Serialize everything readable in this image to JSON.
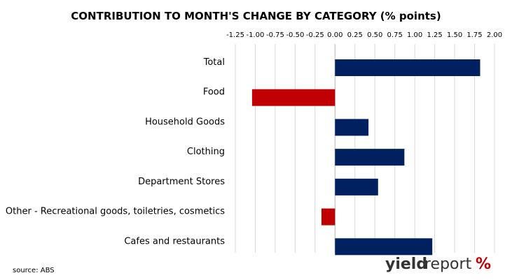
{
  "chart_data": {
    "type": "bar",
    "orientation": "horizontal",
    "title": "CONTRIBUTION TO MONTH'S CHANGE BY CATEGORY (% points)",
    "categories": [
      "Total",
      "Food",
      "Household Goods",
      "Clothing",
      "Department Stores",
      "Other - Recreational goods, toiletries, cosmetics",
      "Cafes and restaurants"
    ],
    "values": [
      1.82,
      -1.04,
      0.42,
      0.87,
      0.54,
      -0.17,
      1.22
    ],
    "xlim": [
      -1.25,
      2.0
    ],
    "xticks": [
      "-1.25",
      "-1.00",
      "-0.75",
      "-0.50",
      "-0.25",
      "0.00",
      "0.25",
      "0.50",
      "0.75",
      "1.00",
      "1.25",
      "1.50",
      "1.75",
      "2.00"
    ],
    "xtick_values": [
      -1.25,
      -1.0,
      -0.75,
      -0.5,
      -0.25,
      0.0,
      0.25,
      0.5,
      0.75,
      1.0,
      1.25,
      1.5,
      1.75,
      2.0
    ],
    "xaxis_position": "top",
    "grid": true,
    "legend": "none",
    "colors": {
      "positive": "#002060",
      "negative": "#C00000",
      "grid": "#D9D9D9"
    }
  },
  "footer": {
    "source": "source: ABS"
  },
  "logo": {
    "text_bold": "yield",
    "text_regular": "report",
    "symbol": "%",
    "text_color": "#333333",
    "symbol_colors": [
      "#2E7D32",
      "#C00000"
    ]
  }
}
